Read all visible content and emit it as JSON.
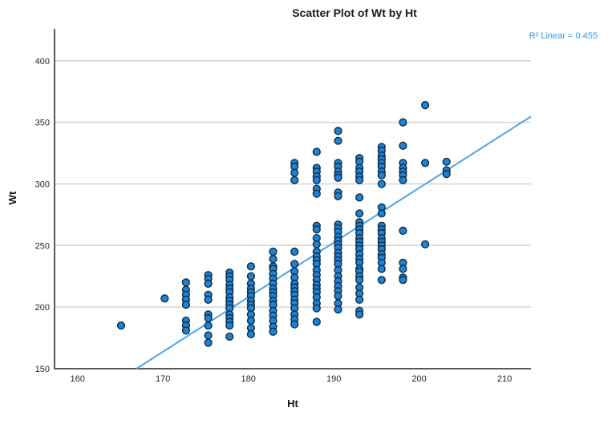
{
  "title": "Scatter Plot of Wt by Ht",
  "annotation": {
    "r2_label": "R² Linear = 0.455"
  },
  "colors": {
    "point_fill": "#1f82d2",
    "point_stroke": "#0f2b45",
    "regression_line": "#4ba6ea",
    "r2_text": "#2e9ce9",
    "grid": "#d4d4d4",
    "axis": "#5a5a5a",
    "text": "#262626"
  },
  "chart_data": {
    "type": "scatter",
    "title": "Scatter Plot of Wt by Ht",
    "xlabel": "Ht",
    "ylabel": "Wt",
    "x_ticks": [
      160,
      170,
      180,
      190,
      200,
      210
    ],
    "y_ticks": [
      150,
      200,
      250,
      300,
      350,
      400
    ],
    "xlim": [
      157.3,
      213.1
    ],
    "ylim": [
      150,
      426
    ],
    "grid": "horizontal-only",
    "legend": "none",
    "r2": 0.455,
    "regression_line": {
      "x1": 166.9,
      "y1": 150,
      "x2": 213.1,
      "y2": 354.8
    },
    "points": [
      [
        165.1,
        185
      ],
      [
        170.2,
        207
      ],
      [
        172.7,
        220
      ],
      [
        172.7,
        214
      ],
      [
        172.7,
        210
      ],
      [
        172.7,
        206
      ],
      [
        172.7,
        202
      ],
      [
        172.7,
        189
      ],
      [
        172.7,
        185
      ],
      [
        172.7,
        181
      ],
      [
        175.3,
        226
      ],
      [
        175.3,
        223
      ],
      [
        175.3,
        219
      ],
      [
        175.3,
        210
      ],
      [
        175.3,
        206
      ],
      [
        175.3,
        194
      ],
      [
        175.3,
        191
      ],
      [
        175.3,
        185
      ],
      [
        175.3,
        177
      ],
      [
        175.3,
        171
      ],
      [
        177.8,
        228
      ],
      [
        177.8,
        225
      ],
      [
        177.8,
        222
      ],
      [
        177.8,
        218
      ],
      [
        177.8,
        215
      ],
      [
        177.8,
        212
      ],
      [
        177.8,
        208
      ],
      [
        177.8,
        205
      ],
      [
        177.8,
        202
      ],
      [
        177.8,
        199
      ],
      [
        177.8,
        194
      ],
      [
        177.8,
        191
      ],
      [
        177.8,
        188
      ],
      [
        177.8,
        185
      ],
      [
        177.8,
        176
      ],
      [
        180.3,
        233
      ],
      [
        180.3,
        225
      ],
      [
        180.3,
        219
      ],
      [
        180.3,
        215
      ],
      [
        180.3,
        212
      ],
      [
        180.3,
        209
      ],
      [
        180.3,
        205
      ],
      [
        180.3,
        202
      ],
      [
        180.3,
        199
      ],
      [
        180.3,
        194
      ],
      [
        180.3,
        189
      ],
      [
        180.3,
        183
      ],
      [
        180.3,
        178
      ],
      [
        182.9,
        245
      ],
      [
        182.9,
        239
      ],
      [
        182.9,
        233
      ],
      [
        182.9,
        231
      ],
      [
        182.9,
        227
      ],
      [
        182.9,
        223
      ],
      [
        182.9,
        219
      ],
      [
        182.9,
        215
      ],
      [
        182.9,
        212
      ],
      [
        182.9,
        209
      ],
      [
        182.9,
        205
      ],
      [
        182.9,
        202
      ],
      [
        182.9,
        197
      ],
      [
        182.9,
        193
      ],
      [
        182.9,
        189
      ],
      [
        182.9,
        184
      ],
      [
        182.9,
        180
      ],
      [
        185.4,
        317
      ],
      [
        185.4,
        314
      ],
      [
        185.4,
        309
      ],
      [
        185.4,
        303
      ],
      [
        185.4,
        245
      ],
      [
        185.4,
        235
      ],
      [
        185.4,
        229
      ],
      [
        185.4,
        224
      ],
      [
        185.4,
        219
      ],
      [
        185.4,
        216
      ],
      [
        185.4,
        213
      ],
      [
        185.4,
        210
      ],
      [
        185.4,
        206
      ],
      [
        185.4,
        203
      ],
      [
        185.4,
        199
      ],
      [
        185.4,
        194
      ],
      [
        185.4,
        190
      ],
      [
        185.4,
        186
      ],
      [
        188.0,
        326
      ],
      [
        188.0,
        313
      ],
      [
        188.0,
        310
      ],
      [
        188.0,
        306
      ],
      [
        188.0,
        303
      ],
      [
        188.0,
        296
      ],
      [
        188.0,
        292
      ],
      [
        188.0,
        266
      ],
      [
        188.0,
        263
      ],
      [
        188.0,
        256
      ],
      [
        188.0,
        251
      ],
      [
        188.0,
        245
      ],
      [
        188.0,
        241
      ],
      [
        188.0,
        238
      ],
      [
        188.0,
        235
      ],
      [
        188.0,
        230
      ],
      [
        188.0,
        226
      ],
      [
        188.0,
        222
      ],
      [
        188.0,
        218
      ],
      [
        188.0,
        215
      ],
      [
        188.0,
        212
      ],
      [
        188.0,
        208
      ],
      [
        188.0,
        203
      ],
      [
        188.0,
        199
      ],
      [
        188.0,
        188
      ],
      [
        190.5,
        343
      ],
      [
        190.5,
        335
      ],
      [
        190.5,
        317
      ],
      [
        190.5,
        314
      ],
      [
        190.5,
        310
      ],
      [
        190.5,
        307
      ],
      [
        190.5,
        305
      ],
      [
        190.5,
        293
      ],
      [
        190.5,
        290
      ],
      [
        190.5,
        267
      ],
      [
        190.5,
        264
      ],
      [
        190.5,
        261
      ],
      [
        190.5,
        257
      ],
      [
        190.5,
        254
      ],
      [
        190.5,
        251
      ],
      [
        190.5,
        248
      ],
      [
        190.5,
        244
      ],
      [
        190.5,
        241
      ],
      [
        190.5,
        238
      ],
      [
        190.5,
        235
      ],
      [
        190.5,
        230
      ],
      [
        190.5,
        225
      ],
      [
        190.5,
        221
      ],
      [
        190.5,
        217
      ],
      [
        190.5,
        213
      ],
      [
        190.5,
        209
      ],
      [
        190.5,
        203
      ],
      [
        190.5,
        198
      ],
      [
        193.0,
        321
      ],
      [
        193.0,
        318
      ],
      [
        193.0,
        313
      ],
      [
        193.0,
        310
      ],
      [
        193.0,
        306
      ],
      [
        193.0,
        303
      ],
      [
        193.0,
        289
      ],
      [
        193.0,
        276
      ],
      [
        193.0,
        269
      ],
      [
        193.0,
        266
      ],
      [
        193.0,
        263
      ],
      [
        193.0,
        260
      ],
      [
        193.0,
        256
      ],
      [
        193.0,
        253
      ],
      [
        193.0,
        250
      ],
      [
        193.0,
        247
      ],
      [
        193.0,
        243
      ],
      [
        193.0,
        239
      ],
      [
        193.0,
        236
      ],
      [
        193.0,
        231
      ],
      [
        193.0,
        229
      ],
      [
        193.0,
        225
      ],
      [
        193.0,
        222
      ],
      [
        193.0,
        216
      ],
      [
        193.0,
        211
      ],
      [
        193.0,
        206
      ],
      [
        193.0,
        197
      ],
      [
        193.0,
        194
      ],
      [
        195.6,
        330
      ],
      [
        195.6,
        327
      ],
      [
        195.6,
        323
      ],
      [
        195.6,
        320
      ],
      [
        195.6,
        317
      ],
      [
        195.6,
        314
      ],
      [
        195.6,
        310
      ],
      [
        195.6,
        307
      ],
      [
        195.6,
        300
      ],
      [
        195.6,
        281
      ],
      [
        195.6,
        276
      ],
      [
        195.6,
        266
      ],
      [
        195.6,
        263
      ],
      [
        195.6,
        260
      ],
      [
        195.6,
        256
      ],
      [
        195.6,
        253
      ],
      [
        195.6,
        250
      ],
      [
        195.6,
        247
      ],
      [
        195.6,
        243
      ],
      [
        195.6,
        240
      ],
      [
        195.6,
        236
      ],
      [
        195.6,
        231
      ],
      [
        195.6,
        222
      ],
      [
        198.1,
        350
      ],
      [
        198.1,
        331
      ],
      [
        198.1,
        317
      ],
      [
        198.1,
        313
      ],
      [
        198.1,
        310
      ],
      [
        198.1,
        307
      ],
      [
        198.1,
        303
      ],
      [
        198.1,
        262
      ],
      [
        198.1,
        236
      ],
      [
        198.1,
        231
      ],
      [
        198.1,
        224
      ],
      [
        198.1,
        222
      ],
      [
        200.7,
        364
      ],
      [
        200.7,
        317
      ],
      [
        200.7,
        251
      ],
      [
        203.2,
        318
      ],
      [
        203.2,
        311
      ],
      [
        203.2,
        308
      ]
    ]
  }
}
